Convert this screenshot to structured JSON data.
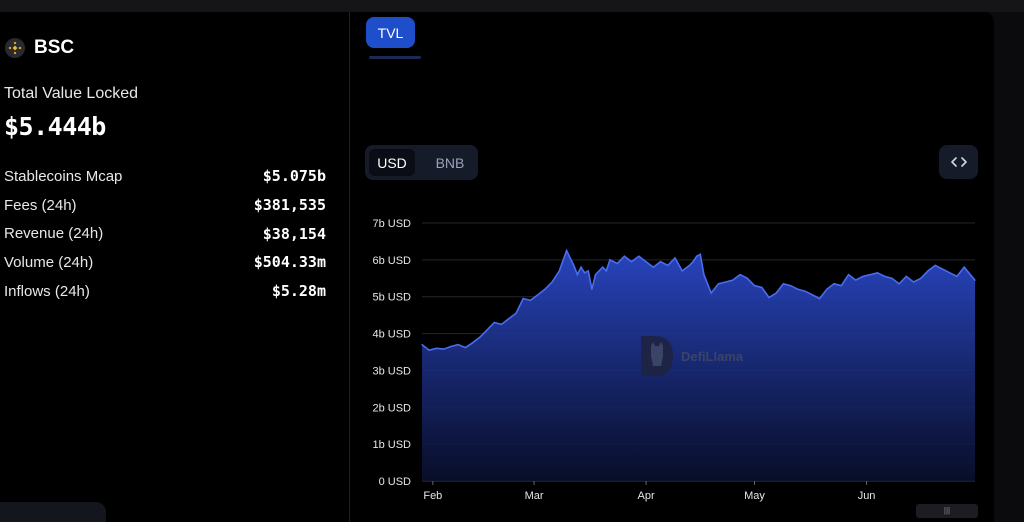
{
  "chain": {
    "name": "BSC",
    "logo_icon": "bnb-logo-icon"
  },
  "tvl": {
    "label": "Total Value Locked",
    "value": "$5.444b"
  },
  "stats": [
    {
      "label": "Stablecoins Mcap",
      "value": "$5.075b"
    },
    {
      "label": "Fees (24h)",
      "value": "$381,535"
    },
    {
      "label": "Revenue (24h)",
      "value": "$38,154"
    },
    {
      "label": "Volume (24h)",
      "value": "$504.33m"
    },
    {
      "label": "Inflows (24h)",
      "value": "$5.28m"
    }
  ],
  "tabs": [
    {
      "label": "TVL",
      "active": true
    }
  ],
  "denomination_toggle": {
    "options": [
      "USD",
      "BNB"
    ],
    "selected": "USD"
  },
  "embed_button": {
    "icon": "code-brackets-icon"
  },
  "watermark": {
    "text": "DefiLlama",
    "icon": "llama-icon"
  },
  "scroll_handle": {
    "label": "|||"
  },
  "colors": {
    "accent": "#1e4ec9",
    "line": "#4a6cf0",
    "area_top": "#2a48c8",
    "background": "#000000"
  },
  "chart_data": {
    "type": "area",
    "title": "",
    "xlabel": "",
    "ylabel": "",
    "ylim": [
      0,
      7
    ],
    "y_unit": "b USD",
    "yticks": [
      "0 USD",
      "1b USD",
      "2b USD",
      "3b USD",
      "4b USD",
      "5b USD",
      "6b USD",
      "7b USD"
    ],
    "x_range": [
      0,
      153
    ],
    "xticks": [
      {
        "label": "Feb",
        "x": 3
      },
      {
        "label": "Mar",
        "x": 31
      },
      {
        "label": "Apr",
        "x": 62
      },
      {
        "label": "May",
        "x": 92
      },
      {
        "label": "Jun",
        "x": 123
      }
    ],
    "grid": true,
    "series": [
      {
        "x": [
          0,
          2,
          4,
          6,
          8,
          10,
          12,
          14,
          16,
          18,
          20,
          22,
          24,
          26,
          28,
          30,
          32,
          34,
          36,
          38,
          40,
          42,
          43,
          44,
          45,
          46,
          47,
          48,
          50,
          51,
          52,
          54,
          56,
          58,
          60,
          62,
          64,
          66,
          68,
          70,
          72,
          74,
          75,
          76,
          77,
          78,
          80,
          82,
          84,
          86,
          88,
          90,
          92,
          94,
          96,
          98,
          100,
          102,
          104,
          106,
          108,
          110,
          112,
          114,
          116,
          118,
          120,
          122,
          124,
          126,
          128,
          130,
          132,
          134,
          136,
          138,
          140,
          142,
          144,
          146,
          148,
          150,
          153
        ],
        "values": [
          3.7,
          3.55,
          3.6,
          3.58,
          3.65,
          3.7,
          3.62,
          3.75,
          3.9,
          4.1,
          4.3,
          4.25,
          4.4,
          4.55,
          4.95,
          4.9,
          5.05,
          5.2,
          5.4,
          5.7,
          6.25,
          5.85,
          5.6,
          5.8,
          5.65,
          5.7,
          5.2,
          5.6,
          5.8,
          5.7,
          6.0,
          5.9,
          6.1,
          5.95,
          6.1,
          5.95,
          5.8,
          5.95,
          5.85,
          6.05,
          5.7,
          5.85,
          5.95,
          6.1,
          6.15,
          5.6,
          5.1,
          5.35,
          5.4,
          5.45,
          5.6,
          5.5,
          5.3,
          5.25,
          4.98,
          5.1,
          5.35,
          5.3,
          5.2,
          5.15,
          5.05,
          4.95,
          5.2,
          5.35,
          5.3,
          5.6,
          5.45,
          5.55,
          5.6,
          5.65,
          5.55,
          5.5,
          5.35,
          5.55,
          5.4,
          5.5,
          5.7,
          5.85,
          5.75,
          5.65,
          5.55,
          5.8,
          5.444
        ]
      }
    ]
  }
}
